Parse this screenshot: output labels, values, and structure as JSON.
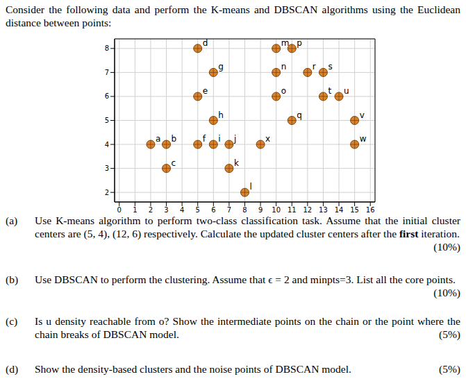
{
  "header": {
    "text": "Consider the following data and perform the K-means and DBSCAN algorithms using the Euclidean distance between points:"
  },
  "chart_data": {
    "type": "scatter",
    "marker": "circle",
    "color": "#d9822b",
    "grid": true,
    "xlim": [
      -0.3,
      16.3
    ],
    "xticks": [
      0,
      1,
      2,
      3,
      4,
      5,
      6,
      7,
      8,
      9,
      10,
      11,
      12,
      13,
      14,
      15,
      16
    ],
    "ylim": [
      1.6,
      8.4
    ],
    "yticks": [
      2,
      3,
      4,
      5,
      6,
      7,
      8
    ],
    "points": [
      {
        "label": "a",
        "x": 2,
        "y": 4
      },
      {
        "label": "b",
        "x": 3,
        "y": 4
      },
      {
        "label": "c",
        "x": 3,
        "y": 3
      },
      {
        "label": "d",
        "x": 5,
        "y": 8
      },
      {
        "label": "e",
        "x": 5,
        "y": 6
      },
      {
        "label": "f",
        "x": 5,
        "y": 4
      },
      {
        "label": "g",
        "x": 6,
        "y": 7
      },
      {
        "label": "h",
        "x": 6,
        "y": 5
      },
      {
        "label": "i",
        "x": 6,
        "y": 4
      },
      {
        "label": "j",
        "x": 7,
        "y": 4
      },
      {
        "label": "k",
        "x": 7,
        "y": 3
      },
      {
        "label": "l",
        "x": 8,
        "y": 2
      },
      {
        "label": "x",
        "x": 9,
        "y": 4
      },
      {
        "label": "m",
        "x": 10,
        "y": 8
      },
      {
        "label": "n",
        "x": 10,
        "y": 7
      },
      {
        "label": "o",
        "x": 10,
        "y": 6
      },
      {
        "label": "p",
        "x": 11,
        "y": 8
      },
      {
        "label": "q",
        "x": 11,
        "y": 5
      },
      {
        "label": "r",
        "x": 12,
        "y": 7
      },
      {
        "label": "s",
        "x": 13,
        "y": 7
      },
      {
        "label": "t",
        "x": 13,
        "y": 6
      },
      {
        "label": "u",
        "x": 14,
        "y": 6
      },
      {
        "label": "v",
        "x": 15,
        "y": 5
      },
      {
        "label": "w",
        "x": 15,
        "y": 4
      }
    ]
  },
  "questions": [
    {
      "label": "(a)",
      "text": "Use K-means algorithm to perform two-class classification task. Assume that the initial cluster centers are (5, 4), (12, 6) respectively. Calculate the updated cluster centers after the first iteration.",
      "emphasis": "first",
      "marks": "(10%)"
    },
    {
      "label": "(b)",
      "text": "Use DBSCAN to perform the clustering. Assume that ϵ = 2 and minpts=3. List all the core points.",
      "marks": "(10%)"
    },
    {
      "label": "(c)",
      "text": "Is u density reachable from o? Show the intermediate points on the chain or the point where the chain breaks of DBSCAN model.",
      "marks": "(5%)"
    },
    {
      "label": "(d)",
      "text": "Show the density-based clusters and the noise points of DBSCAN model.",
      "marks": "(5%)"
    }
  ]
}
